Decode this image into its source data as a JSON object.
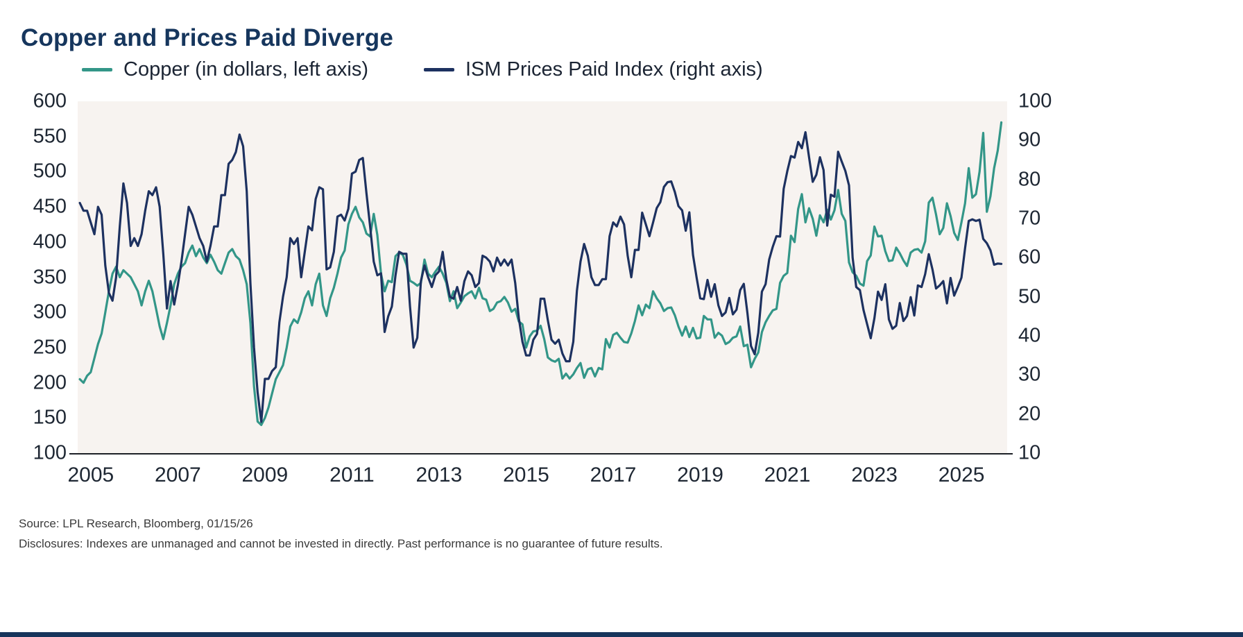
{
  "page": {
    "source": "Source: LPL Research, Bloomberg, 01/15/26",
    "disclosures": "Disclosures: Indexes are unmanaged and cannot be invested in directly. Past performance is no guarantee of future results."
  },
  "colors": {
    "copper_line": "#339688",
    "ism_line": "#1d3160",
    "title_text": "#16365d",
    "axis_text": "#1e2733",
    "panel_background": "#f7f3f0",
    "footer_bar": "#17355c"
  },
  "chart_data": {
    "type": "line",
    "title": "Copper and Prices Paid Diverge",
    "legend_position": "top",
    "grid": false,
    "x_start": 2004.75,
    "x_step": 0.0833333,
    "x_domain": [
      2004.7,
      2026.05
    ],
    "x_ticks": [
      2005,
      2007,
      2009,
      2011,
      2013,
      2015,
      2017,
      2019,
      2021,
      2023,
      2025
    ],
    "left_axis": {
      "min": 100,
      "max": 600,
      "ticks": [
        600,
        550,
        500,
        450,
        400,
        350,
        300,
        250,
        200,
        150,
        100
      ]
    },
    "right_axis": {
      "min": 10,
      "max": 100,
      "ticks": [
        100,
        90,
        80,
        70,
        60,
        50,
        40,
        30,
        20,
        10
      ]
    },
    "series": [
      {
        "name": "Copper (in dollars, left axis)",
        "axis": "left",
        "color": "#339688",
        "values": [
          205,
          200,
          210,
          215,
          235,
          255,
          270,
          300,
          330,
          355,
          365,
          350,
          360,
          355,
          350,
          340,
          330,
          310,
          330,
          345,
          330,
          305,
          280,
          262,
          285,
          310,
          340,
          355,
          365,
          370,
          385,
          395,
          380,
          390,
          378,
          370,
          382,
          372,
          360,
          355,
          370,
          385,
          390,
          380,
          375,
          360,
          340,
          285,
          195,
          145,
          140,
          150,
          165,
          185,
          205,
          215,
          225,
          250,
          280,
          290,
          285,
          300,
          320,
          330,
          310,
          340,
          355,
          310,
          295,
          320,
          335,
          355,
          378,
          388,
          425,
          440,
          450,
          435,
          428,
          412,
          408,
          440,
          410,
          355,
          330,
          345,
          343,
          380,
          385,
          382,
          368,
          345,
          342,
          338,
          342,
          375,
          355,
          350,
          358,
          365,
          355,
          342,
          316,
          330,
          306,
          314,
          323,
          327,
          330,
          320,
          335,
          320,
          318,
          302,
          305,
          314,
          316,
          322,
          314,
          301,
          305,
          287,
          283,
          250,
          266,
          273,
          274,
          281,
          262,
          236,
          232,
          230,
          234,
          206,
          213,
          206,
          212,
          221,
          228,
          207,
          219,
          221,
          209,
          221,
          219,
          262,
          250,
          268,
          271,
          264,
          258,
          257,
          270,
          288,
          310,
          296,
          311,
          306,
          330,
          320,
          313,
          302,
          306,
          307,
          296,
          280,
          267,
          280,
          265,
          278,
          263,
          264,
          295,
          290,
          290,
          264,
          271,
          267,
          255,
          258,
          264,
          266,
          280,
          252,
          254,
          222,
          234,
          243,
          272,
          286,
          295,
          303,
          305,
          342,
          352,
          356,
          409,
          400,
          447,
          468,
          428,
          448,
          433,
          409,
          438,
          428,
          446,
          432,
          445,
          474,
          440,
          430,
          371,
          357,
          352,
          341,
          338,
          373,
          381,
          422,
          408,
          409,
          387,
          373,
          374,
          392,
          384,
          374,
          366,
          385,
          389,
          390,
          385,
          401,
          456,
          463,
          439,
          411,
          420,
          455,
          437,
          413,
          403,
          428,
          455,
          505,
          463,
          468,
          500,
          555,
          443,
          465,
          505,
          530,
          570
        ]
      },
      {
        "name": "ISM Prices Paid Index (right axis)",
        "axis": "right",
        "color": "#1d3160",
        "values": [
          74,
          72,
          72,
          69,
          66,
          73,
          71,
          58,
          51,
          49,
          55,
          68,
          79,
          74,
          63,
          65,
          63,
          66,
          72,
          77,
          76,
          78,
          73,
          61,
          47,
          54,
          48,
          53,
          59,
          66,
          73,
          71,
          68,
          65,
          63,
          59,
          63,
          68,
          68,
          76,
          76,
          84,
          85,
          87,
          91.5,
          88.5,
          77,
          53.5,
          37,
          25.5,
          18,
          29,
          29,
          31,
          32,
          43.5,
          50,
          55,
          65,
          63.5,
          65,
          55,
          61.5,
          68,
          67,
          75,
          78,
          77.5,
          57,
          57.5,
          61.5,
          70.5,
          71,
          69.5,
          72.5,
          81.5,
          82,
          85,
          85.5,
          76.5,
          68,
          59,
          55.5,
          56,
          41,
          45,
          47.5,
          55.5,
          61.5,
          61,
          61,
          47.5,
          37,
          39.5,
          54,
          58,
          55,
          52.5,
          55.5,
          56.5,
          61.5,
          54.5,
          50,
          49.5,
          52.5,
          49,
          54,
          56.5,
          55.5,
          52.5,
          53.5,
          60.5,
          60,
          59,
          56.5,
          60,
          58,
          59.5,
          58,
          59.5,
          53.5,
          44.5,
          38.5,
          35,
          35,
          39,
          40.5,
          49.5,
          49.5,
          44,
          39,
          38,
          39,
          35.5,
          33.5,
          33.5,
          38.5,
          51.5,
          59,
          63.5,
          60.5,
          55,
          53,
          53,
          54.5,
          54.5,
          65.5,
          69,
          68,
          70.5,
          68.5,
          60.5,
          55,
          62,
          62,
          71.5,
          68.5,
          65.5,
          69,
          72.7,
          74.2,
          78.1,
          79.3,
          79.5,
          76.8,
          73.2,
          72.1,
          66.9,
          71.6,
          60.7,
          54.9,
          49.6,
          49.4,
          54.3,
          50,
          53.2,
          47.8,
          45.1,
          46,
          49.7,
          45.5,
          46.7,
          51.7,
          53.3,
          45.9,
          37.4,
          35.3,
          40.8,
          51.3,
          53.2,
          59.5,
          62.8,
          65.5,
          65.4,
          77.6,
          82.1,
          86,
          85.6,
          89.6,
          88,
          92.1,
          85.7,
          79.4,
          81.2,
          85.7,
          82.4,
          68.2,
          76.1,
          75.6,
          87.1,
          84.6,
          82.2,
          78.5,
          60,
          52.5,
          51.7,
          46.6,
          43,
          39.4,
          44.5,
          51.3,
          49.2,
          53.2,
          44.2,
          41.8,
          42.6,
          48.4,
          43.8,
          45.1,
          49.9,
          45.2,
          52.9,
          52.5,
          55.8,
          60.9,
          57,
          52.1,
          52.9,
          54,
          48.3,
          54.8,
          50.3,
          52.5,
          54.9,
          62.4,
          69.4,
          69.8,
          69.4,
          69.7,
          64.8,
          63.7,
          61.9,
          58.2,
          58.5,
          58.4
        ]
      }
    ]
  }
}
